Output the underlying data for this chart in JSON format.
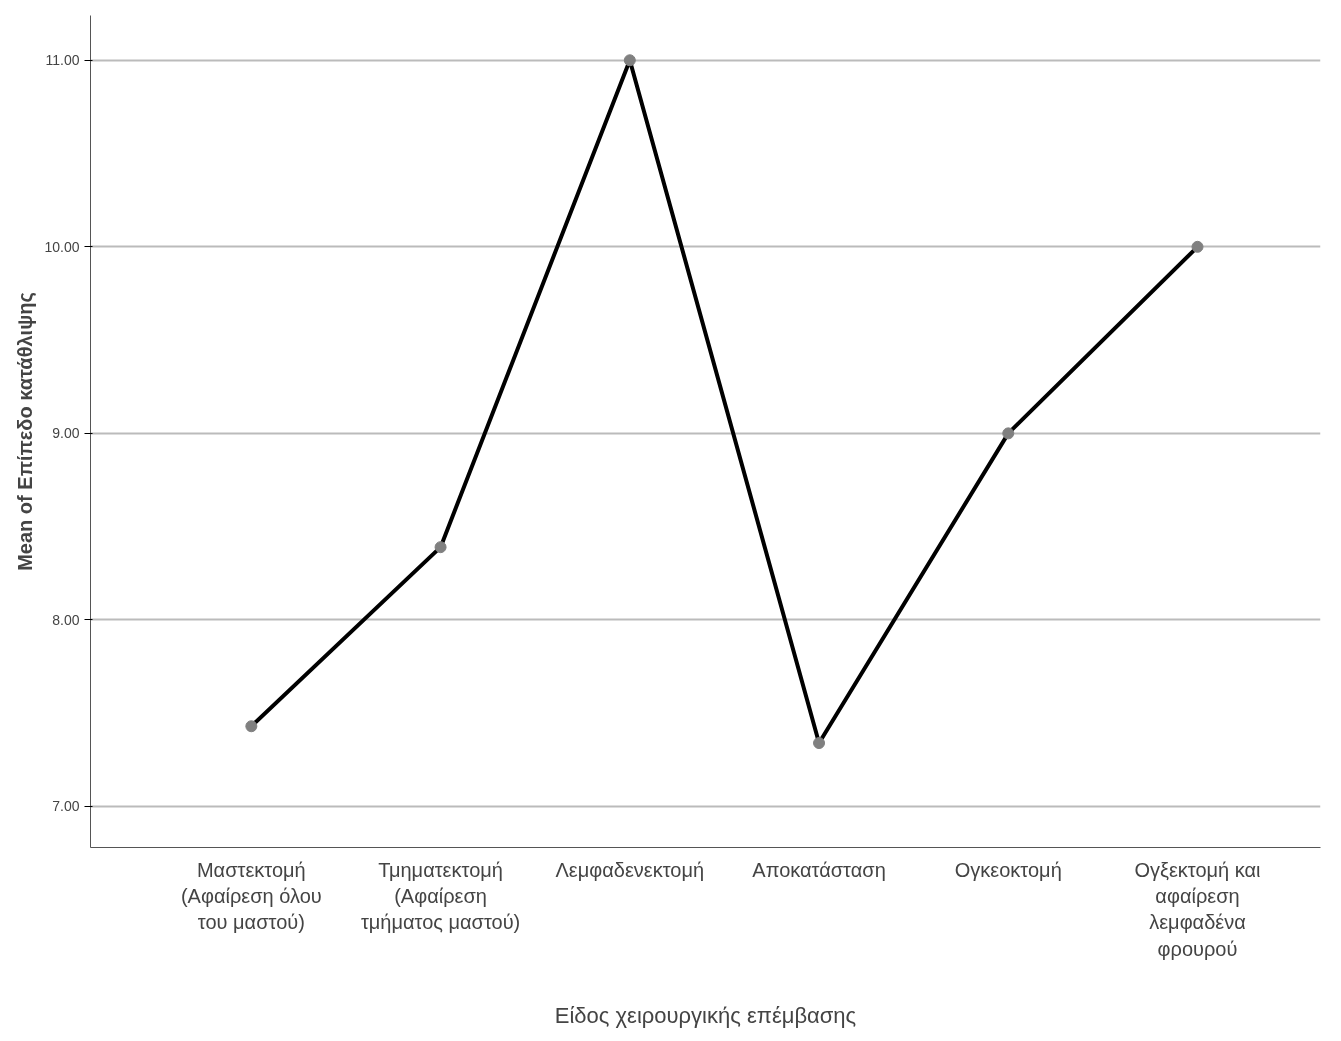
{
  "chart_data": {
    "type": "line",
    "xlabel": "Είδος χειρουργικής επέμβασης",
    "ylabel": "Mean of Επίπεδο κατάθλιψης",
    "categories": [
      "Μαστεκτομή\n(Αφαίρεση όλου\nτου μαστού)",
      "Τμηματεκτομή\n(Αφαίρεση\nτμήματος μαστού)",
      "Λεμφαδενεκτομή",
      "Αποκατάσταση",
      "Ογκεοκτομή",
      "Ογξεκτομή και\nαφαίρεση\nλεμφαδένα\nφρουρού"
    ],
    "series": [
      {
        "color": "#000000",
        "values": [
          7.43,
          8.39,
          11.0,
          7.34,
          9.0,
          10.0
        ]
      }
    ],
    "ylim": [
      6.78,
      11.24
    ],
    "yticks": [
      {
        "value": 7,
        "label": "7.00"
      },
      {
        "value": 8,
        "label": "8.00"
      },
      {
        "value": 9,
        "label": "9.00"
      },
      {
        "value": 10,
        "label": "10.00"
      },
      {
        "value": 11,
        "label": "11.00"
      }
    ],
    "grid": "y",
    "marker": "circle",
    "line_style": "solid"
  }
}
